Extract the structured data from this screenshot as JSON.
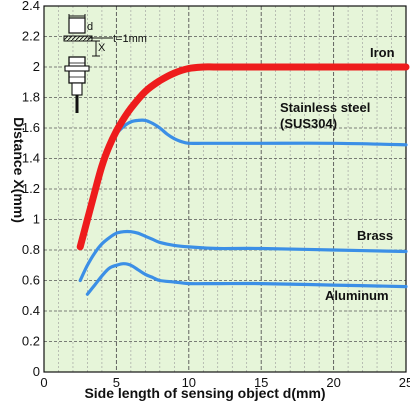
{
  "chart_data": {
    "type": "line",
    "title": "",
    "xlabel": "Side length of sensing object d(mm)",
    "ylabel": "Distance X(mm)",
    "xlim": [
      0,
      25
    ],
    "ylim": [
      0,
      2.4
    ],
    "xticks": [
      "0",
      "5",
      "10",
      "15",
      "20",
      "25"
    ],
    "yticks": [
      "0",
      "0.2",
      "0.4",
      "0.6",
      "0.8",
      "1",
      "1.2",
      "1.4",
      "1.6",
      "1.8",
      "2",
      "2.2",
      "2.4"
    ],
    "grid": true,
    "background": "#e6f5d9",
    "series": [
      {
        "name": "Iron",
        "color": "#ee1c1c",
        "x": [
          2.5,
          3,
          3.5,
          4,
          4.5,
          5,
          5.5,
          6,
          7,
          8,
          9,
          10,
          11,
          12,
          15,
          20,
          25
        ],
        "y": [
          0.82,
          1.0,
          1.18,
          1.35,
          1.48,
          1.58,
          1.66,
          1.73,
          1.84,
          1.91,
          1.96,
          1.99,
          2.0,
          2.0,
          2.0,
          2.0,
          2.0
        ]
      },
      {
        "name": "Stainless steel\n(SUS304)",
        "color": "#3b8fe6",
        "x": [
          2.5,
          3,
          3.5,
          4,
          4.5,
          5,
          5.5,
          6,
          6.5,
          7,
          7.5,
          8,
          8.5,
          9,
          9.5,
          10,
          11,
          12,
          15,
          20,
          25
        ],
        "y": [
          0.82,
          1.02,
          1.2,
          1.35,
          1.47,
          1.56,
          1.61,
          1.64,
          1.65,
          1.65,
          1.63,
          1.6,
          1.56,
          1.53,
          1.51,
          1.5,
          1.5,
          1.5,
          1.5,
          1.5,
          1.49
        ]
      },
      {
        "name": "Brass",
        "color": "#3b8fe6",
        "x": [
          2.5,
          3,
          3.5,
          4,
          4.5,
          5,
          5.5,
          6,
          6.5,
          7,
          7.5,
          8,
          9,
          10,
          12,
          15,
          20,
          25
        ],
        "y": [
          0.6,
          0.7,
          0.78,
          0.84,
          0.88,
          0.91,
          0.92,
          0.92,
          0.91,
          0.89,
          0.87,
          0.85,
          0.83,
          0.82,
          0.81,
          0.81,
          0.8,
          0.79
        ]
      },
      {
        "name": "Aluminum",
        "color": "#3b8fe6",
        "x": [
          3,
          3.5,
          4,
          4.5,
          5,
          5.5,
          6,
          6.5,
          7,
          7.5,
          8,
          9,
          10,
          12,
          15,
          20,
          25
        ],
        "y": [
          0.51,
          0.57,
          0.63,
          0.68,
          0.7,
          0.71,
          0.7,
          0.67,
          0.64,
          0.62,
          0.6,
          0.59,
          0.58,
          0.58,
          0.58,
          0.57,
          0.56
        ]
      }
    ],
    "inset": {
      "d_label": "d",
      "x_label": "X",
      "t_label": "t=1mm"
    }
  }
}
